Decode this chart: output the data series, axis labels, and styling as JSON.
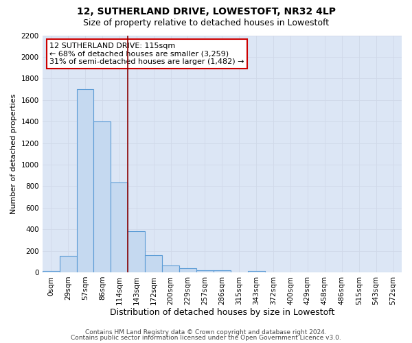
{
  "title": "12, SUTHERLAND DRIVE, LOWESTOFT, NR32 4LP",
  "subtitle": "Size of property relative to detached houses in Lowestoft",
  "xlabel": "Distribution of detached houses by size in Lowestoft",
  "ylabel": "Number of detached properties",
  "bar_labels": [
    "0sqm",
    "29sqm",
    "57sqm",
    "86sqm",
    "114sqm",
    "143sqm",
    "172sqm",
    "200sqm",
    "229sqm",
    "257sqm",
    "286sqm",
    "315sqm",
    "343sqm",
    "372sqm",
    "400sqm",
    "429sqm",
    "458sqm",
    "486sqm",
    "515sqm",
    "543sqm",
    "572sqm"
  ],
  "bar_values": [
    15,
    155,
    1700,
    1400,
    835,
    385,
    160,
    65,
    35,
    22,
    22,
    0,
    12,
    0,
    0,
    0,
    0,
    0,
    0,
    0,
    0
  ],
  "bar_color": "#c5d9f0",
  "bar_edgecolor": "#5b9bd5",
  "bar_linewidth": 0.8,
  "highlight_bar_index": 4,
  "highlight_line_color": "#8B0000",
  "ylim": [
    0,
    2200
  ],
  "yticks": [
    0,
    200,
    400,
    600,
    800,
    1000,
    1200,
    1400,
    1600,
    1800,
    2000,
    2200
  ],
  "grid_color": "#d0d8e8",
  "background_color": "#dce6f5",
  "annotation_text": "12 SUTHERLAND DRIVE: 115sqm\n← 68% of detached houses are smaller (3,259)\n31% of semi-detached houses are larger (1,482) →",
  "annotation_box_color": "#ffffff",
  "annotation_box_edgecolor": "#cc0000",
  "footnote1": "Contains HM Land Registry data © Crown copyright and database right 2024.",
  "footnote2": "Contains public sector information licensed under the Open Government Licence v3.0.",
  "title_fontsize": 10,
  "subtitle_fontsize": 9,
  "xlabel_fontsize": 9,
  "ylabel_fontsize": 8,
  "tick_fontsize": 7.5,
  "annotation_fontsize": 8,
  "footnote_fontsize": 6.5
}
